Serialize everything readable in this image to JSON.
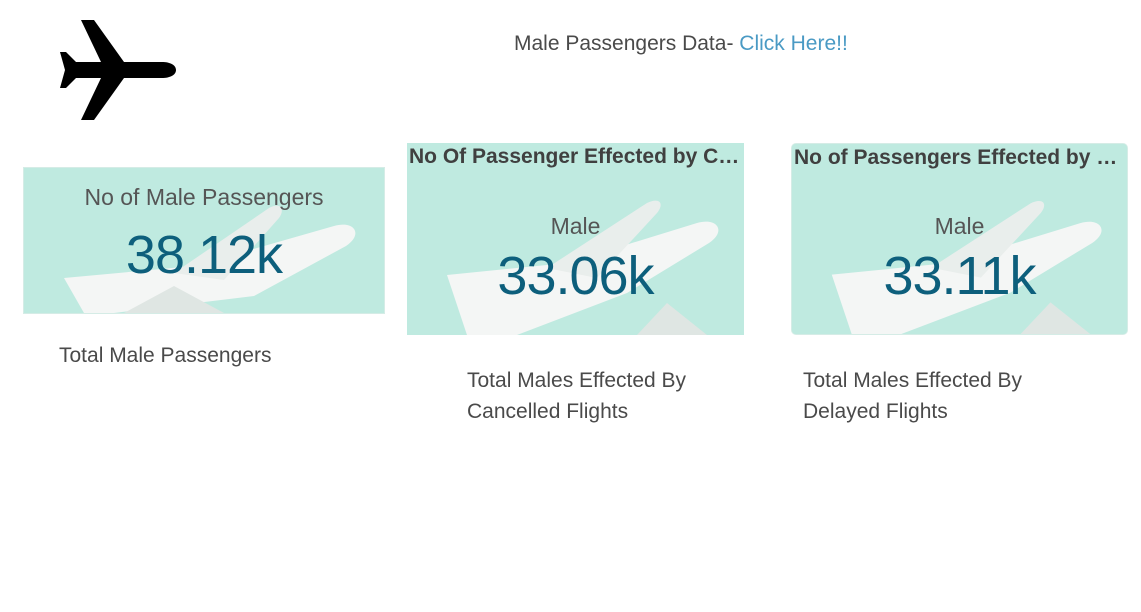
{
  "header": {
    "prefix": "Male Passengers Data- ",
    "link_label": "Click Here!!",
    "link_color": "#4a9ac4"
  },
  "logo": {
    "icon": "airplane-icon"
  },
  "cards": [
    {
      "title": "No of Male Passengers",
      "value": "38.12k",
      "caption": "Total Male Passengers"
    },
    {
      "title": "No Of Passenger Effected by Cancelled Flights",
      "subtitle": "Male",
      "value": "33.06k",
      "caption_line1": "Total Males Effected By",
      "caption_line2": "Cancelled Flights"
    },
    {
      "title": "No of Passengers Effected by Delayed Flights",
      "subtitle": "Male",
      "value": "33.11k",
      "caption_line1": "Total Males Effected By",
      "caption_line2": "Delayed Flights"
    }
  ],
  "colors": {
    "card_background": "#bfeae0",
    "value_text": "#0d5f7c"
  }
}
